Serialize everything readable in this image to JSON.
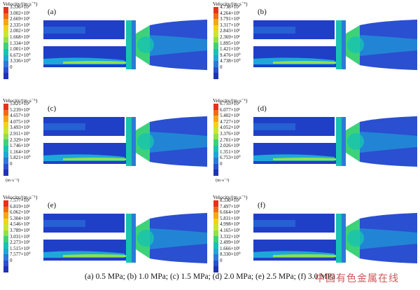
{
  "colorbar_title": "Velocity/(m·s⁻¹)",
  "colormap": [
    "#e8311a",
    "#f26a14",
    "#f5a713",
    "#f2d21b",
    "#cbe630",
    "#8fe14a",
    "#3dd27a",
    "#18c3b2",
    "#1ea8d8",
    "#2b7ad9",
    "#2a4fd0",
    "#1f33b5"
  ],
  "panels": [
    {
      "label": "(a)",
      "unit": "",
      "ticks": [
        "3.336×10¹",
        "3.002×10¹",
        "2.669×10¹",
        "2.335×10¹",
        "2.002×10¹",
        "1.668×10¹",
        "1.334×10¹",
        "1.001×10¹",
        "6.672×10⁰",
        "3.336×10⁰",
        "0"
      ]
    },
    {
      "label": "(b)",
      "unit": "",
      "ticks": [
        "4.738×10¹",
        "4.264×10¹",
        "3.791×10¹",
        "3.317×10¹",
        "2.843×10¹",
        "2.369×10¹",
        "1.895×10¹",
        "1.421×10¹",
        "9.476×10⁰",
        "4.738×10⁰",
        "0"
      ]
    },
    {
      "label": "(c)",
      "unit": "(m·s⁻¹)",
      "ticks": [
        "5.821×10¹",
        "5.239×10¹",
        "4.657×10¹",
        "4.075×10¹",
        "3.493×10¹",
        "2.911×10¹",
        "2.329×10¹",
        "1.746×10¹",
        "1.164×10¹",
        "5.821×10⁰",
        "0"
      ]
    },
    {
      "label": "(d)",
      "unit": "(m·s⁻¹)",
      "ticks": [
        "6.753×10¹",
        "6.077×10¹",
        "5.402×10¹",
        "4.727×10¹",
        "4.052×10¹",
        "3.376×10¹",
        "2.701×10¹",
        "2.026×10¹",
        "1.351×10¹",
        "6.753×10⁰",
        "0"
      ]
    },
    {
      "label": "(e)",
      "unit": "",
      "ticks": [
        "7.577×10¹",
        "6.819×10¹",
        "6.062×10¹",
        "5.304×10¹",
        "4.546×10¹",
        "3.789×10¹",
        "3.031×10¹",
        "2.273×10¹",
        "1.515×10¹",
        "7.577×10⁰",
        "0"
      ]
    },
    {
      "label": "(f)",
      "unit": "",
      "ticks": [
        "8.330×10¹",
        "7.497×10¹",
        "6.664×10¹",
        "5.831×10¹",
        "4.998×10¹",
        "4.165×10¹",
        "3.332×10¹",
        "2.499×10¹",
        "1.666×10¹",
        "8.330×10⁰",
        "0"
      ]
    }
  ],
  "caption": "(a) 0.5 MPa; (b) 1.0 MPa; (c) 1.5 MPa; (d) 2.0 MPa; (e) 2.5 MPa; (f) 3.0 MPa",
  "watermark": "中国有色金属在线"
}
